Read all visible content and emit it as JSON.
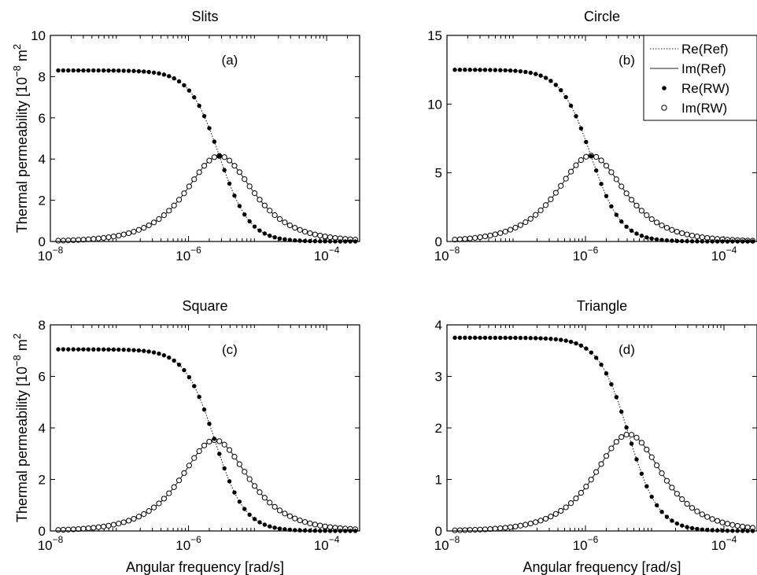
{
  "chart_data": [
    {
      "type": "line",
      "title": "Slits",
      "panel_label": "(a)",
      "ylabel": "Thermal permeability [10^-8 m^2]",
      "ylabel_base": "Thermal permeability [10",
      "ylabel_exp": "−8",
      "ylabel_unit": "m",
      "ylabel_unit_exp": "2",
      "xlabel": "",
      "xscale": "log",
      "xlim": [
        1e-08,
        0.0003
      ],
      "ylim": [
        0,
        10
      ],
      "yticks": [
        "0",
        "2",
        "4",
        "6",
        "8",
        "10"
      ],
      "xticks": [
        {
          "base": "10",
          "exp": "−8"
        },
        {
          "base": "10",
          "exp": "−6"
        },
        {
          "base": "10",
          "exp": "−4"
        }
      ],
      "k0": 8.3,
      "omega_c": 2.8e-06,
      "series": [
        {
          "name": "Re(Ref)",
          "kind": "real",
          "style": "dotted-line"
        },
        {
          "name": "Im(Ref)",
          "kind": "imag",
          "style": "solid-line"
        },
        {
          "name": "Re(RW)",
          "kind": "real",
          "style": "filled-dots"
        },
        {
          "name": "Im(RW)",
          "kind": "imag",
          "style": "open-circles"
        }
      ],
      "peak_imag": 4.15,
      "grid": false,
      "show_legend": false
    },
    {
      "type": "line",
      "title": "Circle",
      "panel_label": "(b)",
      "ylabel": "",
      "xlabel": "",
      "xscale": "log",
      "xlim": [
        1e-08,
        0.0003
      ],
      "ylim": [
        0,
        15
      ],
      "yticks": [
        "0",
        "5",
        "10",
        "15"
      ],
      "xticks": [
        {
          "base": "10",
          "exp": "−8"
        },
        {
          "base": "10",
          "exp": "−6"
        },
        {
          "base": "10",
          "exp": "−4"
        }
      ],
      "k0": 12.5,
      "omega_c": 1.2e-06,
      "series": [
        {
          "name": "Re(Ref)",
          "kind": "real",
          "style": "dotted-line"
        },
        {
          "name": "Im(Ref)",
          "kind": "imag",
          "style": "solid-line"
        },
        {
          "name": "Re(RW)",
          "kind": "real",
          "style": "filled-dots"
        },
        {
          "name": "Im(RW)",
          "kind": "imag",
          "style": "open-circles"
        }
      ],
      "peak_imag": 6.1,
      "grid": false,
      "show_legend": true,
      "legend_position": "top-right"
    },
    {
      "type": "line",
      "title": "Square",
      "panel_label": "(c)",
      "ylabel": "Thermal permeability [10^-8 m^2]",
      "ylabel_base": "Thermal permeability [10",
      "ylabel_exp": "−8",
      "ylabel_unit": "m",
      "ylabel_unit_exp": "2",
      "xlabel": "Angular frequency [rad/s]",
      "xscale": "log",
      "xlim": [
        1e-08,
        0.0003
      ],
      "ylim": [
        0,
        8
      ],
      "yticks": [
        "0",
        "2",
        "4",
        "6",
        "8"
      ],
      "xticks": [
        {
          "base": "10",
          "exp": "−8"
        },
        {
          "base": "10",
          "exp": "−6"
        },
        {
          "base": "10",
          "exp": "−4"
        }
      ],
      "k0": 7.05,
      "omega_c": 2.4e-06,
      "series": [
        {
          "name": "Re(Ref)",
          "kind": "real",
          "style": "dotted-line"
        },
        {
          "name": "Im(Ref)",
          "kind": "imag",
          "style": "solid-line"
        },
        {
          "name": "Re(RW)",
          "kind": "real",
          "style": "filled-dots"
        },
        {
          "name": "Im(RW)",
          "kind": "imag",
          "style": "open-circles"
        }
      ],
      "peak_imag": 3.45,
      "grid": false,
      "show_legend": false
    },
    {
      "type": "line",
      "title": "Triangle",
      "panel_label": "(d)",
      "ylabel": "",
      "xlabel": "Angular frequency [rad/s]",
      "xscale": "log",
      "xlim": [
        1e-08,
        0.0003
      ],
      "ylim": [
        0,
        4
      ],
      "yticks": [
        "0",
        "1",
        "2",
        "3",
        "4"
      ],
      "xticks": [
        {
          "base": "10",
          "exp": "−8"
        },
        {
          "base": "10",
          "exp": "−6"
        },
        {
          "base": "10",
          "exp": "−4"
        }
      ],
      "k0": 3.75,
      "omega_c": 4.2e-06,
      "series": [
        {
          "name": "Re(Ref)",
          "kind": "real",
          "style": "dotted-line"
        },
        {
          "name": "Im(Ref)",
          "kind": "imag",
          "style": "solid-line"
        },
        {
          "name": "Re(RW)",
          "kind": "real",
          "style": "filled-dots"
        },
        {
          "name": "Im(RW)",
          "kind": "imag",
          "style": "open-circles"
        }
      ],
      "peak_imag": 1.8,
      "grid": false,
      "show_legend": false
    }
  ],
  "colors": {
    "axes": "#000000",
    "dots": "#000000",
    "ref_line": "#222222",
    "background": "#ffffff"
  }
}
